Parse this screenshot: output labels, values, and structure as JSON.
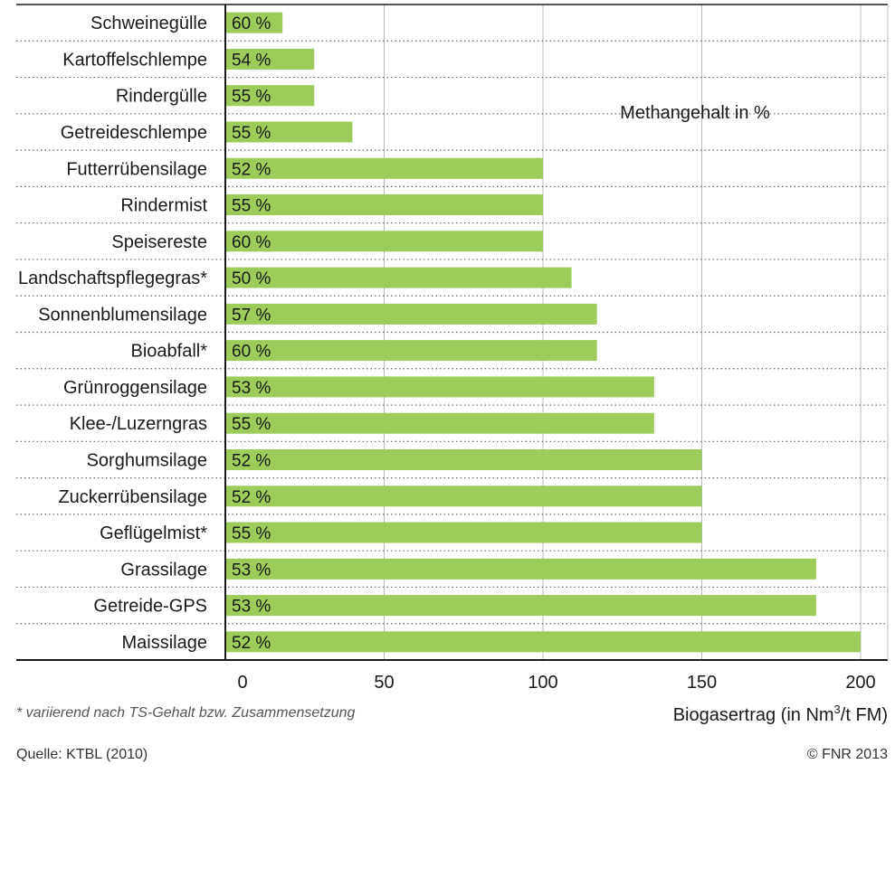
{
  "chart_data": {
    "type": "bar",
    "orientation": "horizontal",
    "categories": [
      "Schweinegülle",
      "Kartoffelschlempe",
      "Rindergülle",
      "Getreideschlempe",
      "Futterrübensilage",
      "Rindermist",
      "Speisereste",
      "Landschaftspflegegras*",
      "Sonnenblumensilage",
      "Bioabfall*",
      "Grünroggensilage",
      "Klee-/Luzerngras",
      "Sorghumsilage",
      "Zuckerrübensilage",
      "Geflügelmist*",
      "Grassilage",
      "Getreide-GPS",
      "Maissilage"
    ],
    "values": [
      18,
      28,
      28,
      40,
      100,
      100,
      100,
      109,
      117,
      117,
      135,
      135,
      150,
      150,
      150,
      186,
      186,
      200
    ],
    "labels": [
      "60 %",
      "54 %",
      "55 %",
      "55 %",
      "52 %",
      "55 %",
      "60 %",
      "50 %",
      "57 %",
      "60 %",
      "53 %",
      "55  %",
      "52 %",
      "52 %",
      "55 %",
      "53 %",
      "53 %",
      "52 %"
    ],
    "xticks": [
      "0",
      "50",
      "100",
      "150",
      "200"
    ],
    "xlim": [
      0,
      200
    ],
    "xlabel_pre": "Biogasertrag (in Nm",
    "xlabel_sup": "3",
    "xlabel_post": "/t FM)",
    "annotation": "Methangehalt in %",
    "bar_color": "#9dcc5a",
    "grid": true
  },
  "footnote": "* variierend nach TS-Gehalt bzw. Zusammensetzung",
  "source": "Quelle: KTBL (2010)",
  "copyright": "© FNR 2013"
}
